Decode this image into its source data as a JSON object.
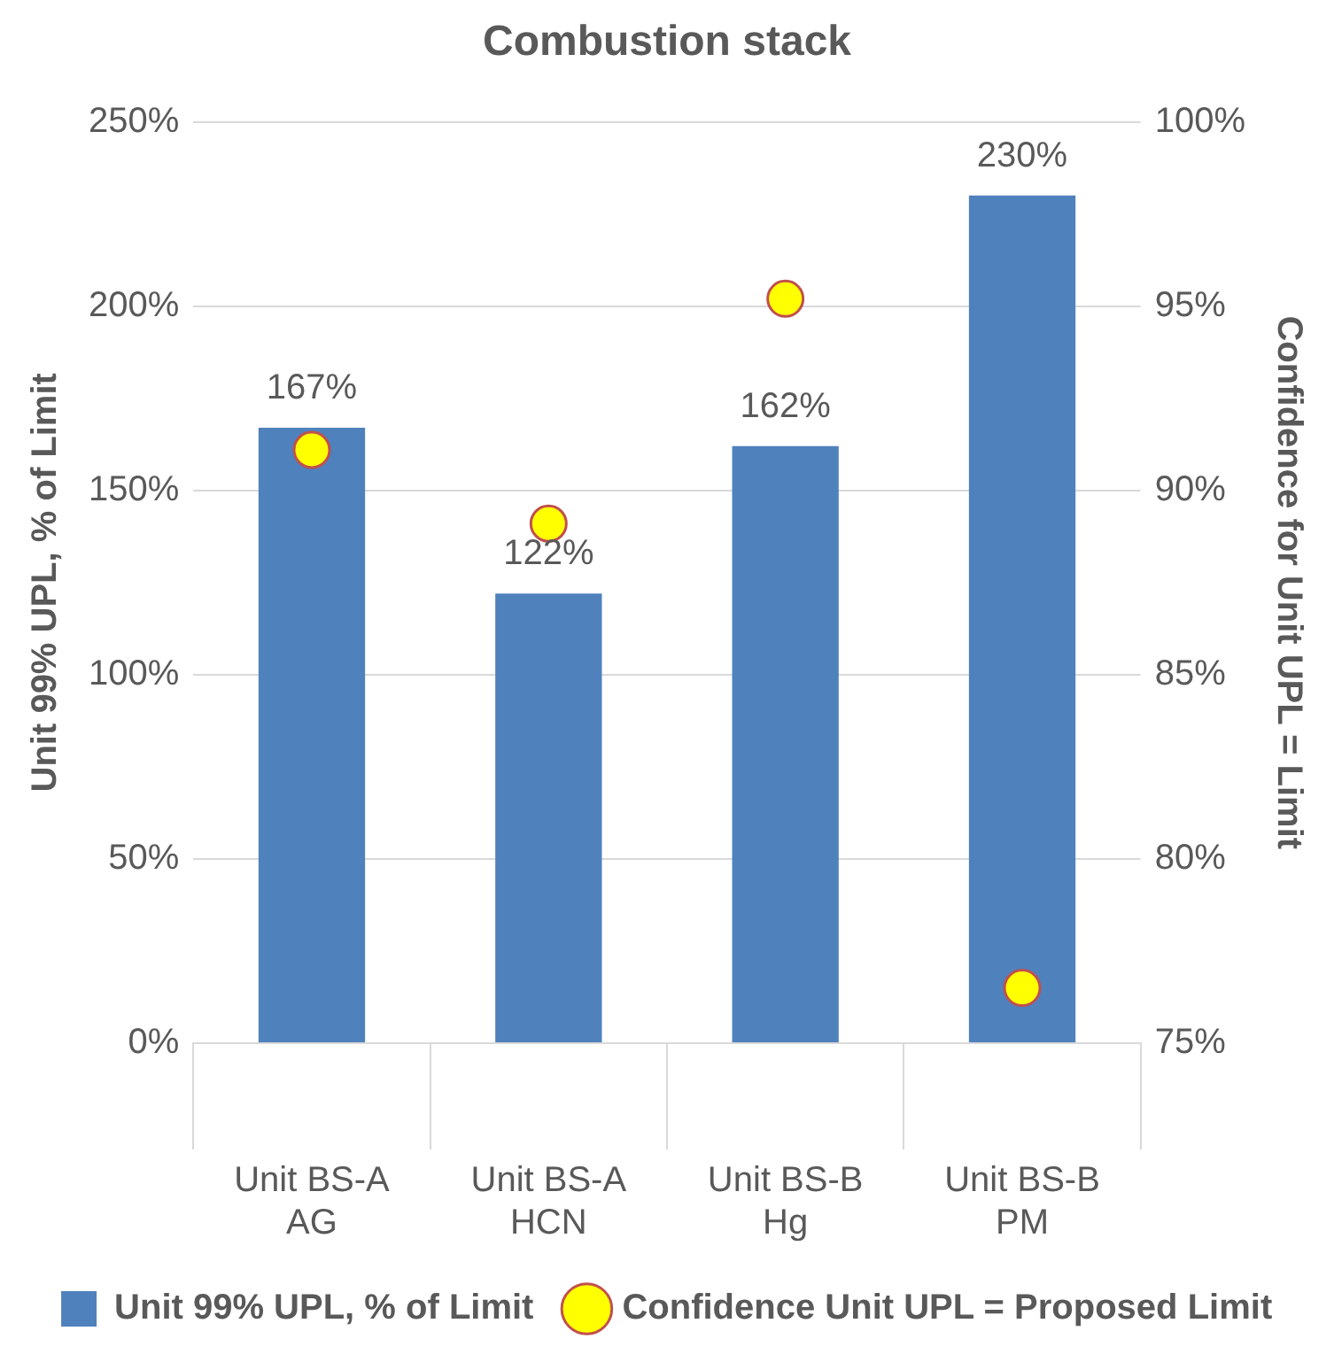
{
  "chart_data": {
    "type": "bar",
    "title": "Combustion stack",
    "ylabel": "Unit 99% UPL, % of Limit",
    "y2label": "Confidence for Unit UPL = Limit",
    "categories": [
      "Unit BS-A\nAG",
      "Unit BS-A\nHCN",
      "Unit BS-B\nHg",
      "Unit BS-B\nPM"
    ],
    "series": [
      {
        "name": "Unit 99% UPL, % of Limit",
        "color": "#4f81bd",
        "values": [
          167,
          122,
          162,
          230
        ],
        "value_labels": [
          "167%",
          "122%",
          "162%",
          "230%"
        ]
      },
      {
        "name": "Confidence Unit UPL = Proposed Limit",
        "type": "scatter",
        "axis": "y2",
        "color": "#ffff00",
        "marker": "circle",
        "values": [
          91.1,
          89.1,
          95.2,
          76.5
        ]
      }
    ],
    "ylim": [
      0,
      250
    ],
    "yticks": [
      {
        "value": 0,
        "label": "0%"
      },
      {
        "value": 50,
        "label": "50%"
      },
      {
        "value": 100,
        "label": "100%"
      },
      {
        "value": 150,
        "label": "150%"
      },
      {
        "value": 200,
        "label": "200%"
      },
      {
        "value": 250,
        "label": "250%"
      }
    ],
    "y2lim": [
      75,
      100
    ],
    "y2ticks": [
      {
        "value": 75,
        "label": "75%"
      },
      {
        "value": 80,
        "label": "80%"
      },
      {
        "value": 85,
        "label": "85%"
      },
      {
        "value": 90,
        "label": "90%"
      },
      {
        "value": 95,
        "label": "95%"
      },
      {
        "value": 100,
        "label": "100%"
      }
    ],
    "grid": "y",
    "legend": "bottom"
  }
}
